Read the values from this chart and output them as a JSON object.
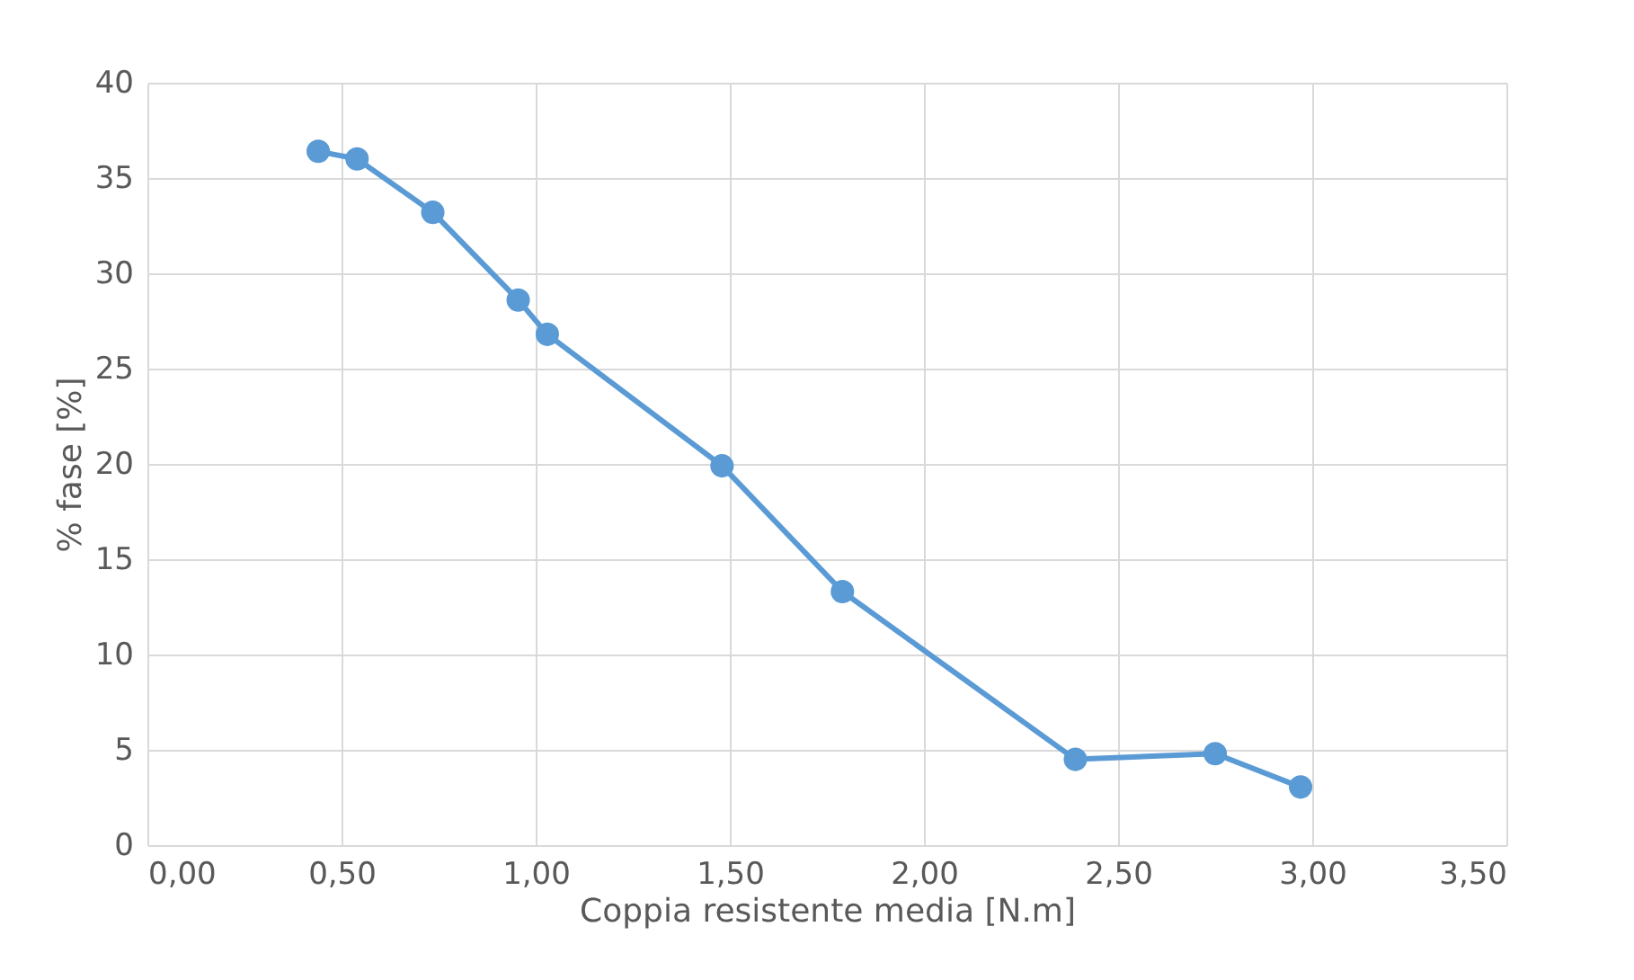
{
  "chart_data": {
    "type": "line",
    "xlabel": "Coppia resistente media [N.m]",
    "ylabel": "% fase [%]",
    "x": [
      0.44,
      0.54,
      0.735,
      0.955,
      1.03,
      1.48,
      1.79,
      2.39,
      2.75,
      2.97
    ],
    "series": [
      {
        "color": "#5b9bd5",
        "values": [
          36.4,
          36.0,
          33.2,
          28.6,
          26.8,
          19.9,
          13.3,
          4.5,
          4.8,
          3.05
        ]
      }
    ],
    "xlim": [
      0,
      3.5
    ],
    "xticks": [
      {
        "value": 0,
        "label": "0,00"
      },
      {
        "value": 0.5,
        "label": "0,50"
      },
      {
        "value": 1,
        "label": "1,00"
      },
      {
        "value": 1.5,
        "label": "1,50"
      },
      {
        "value": 2,
        "label": "2,00"
      },
      {
        "value": 2.5,
        "label": "2,50"
      },
      {
        "value": 3,
        "label": "3,00"
      },
      {
        "value": 3.5,
        "label": "3,50"
      }
    ],
    "ylim": [
      0,
      40
    ],
    "yticks": [
      0,
      5,
      10,
      15,
      20,
      25,
      30,
      35,
      40
    ],
    "grid": true,
    "marker": "circle",
    "line_style": "solid"
  }
}
